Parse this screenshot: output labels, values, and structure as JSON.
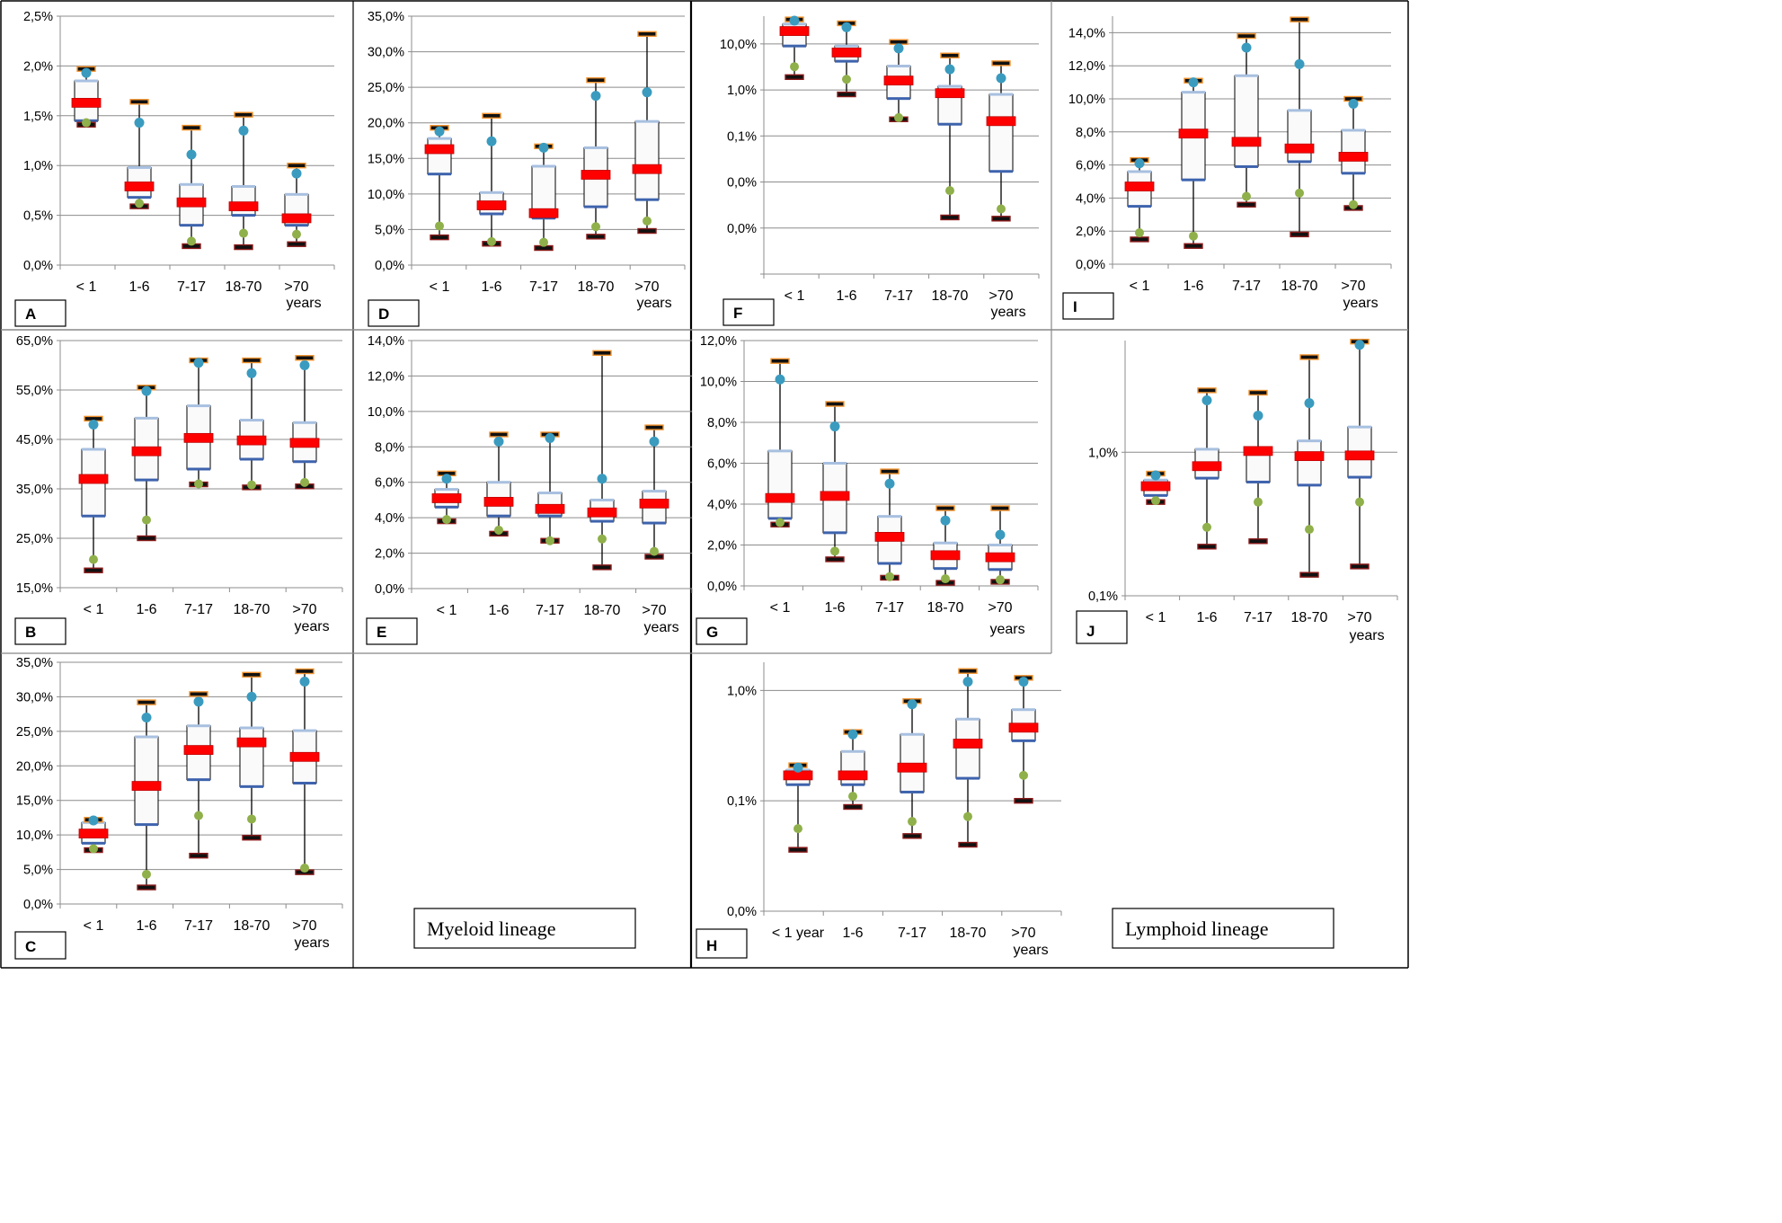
{
  "lineage_labels": {
    "myeloid": "Myeloid lineage",
    "lymphoid": "Lymphoid lineage"
  },
  "chart_data": [
    {
      "panel": "A",
      "type": "box",
      "scale": "linear",
      "ylim": [
        0,
        2.5
      ],
      "yticks": [
        0,
        0.5,
        1.0,
        1.5,
        2.0,
        2.5
      ],
      "ytick_labels": [
        "0,0%",
        "0,5%",
        "1,0%",
        "1,5%",
        "2,0%",
        "2,5%"
      ],
      "categories": [
        "< 1",
        "1-6",
        "7-17",
        "18-70",
        ">70"
      ],
      "xunit": "years",
      "grid": true,
      "boxes": [
        {
          "max": 1.97,
          "p95": 1.93,
          "q3": 1.85,
          "median": 1.63,
          "q1": 1.45,
          "p5": 1.43,
          "min": 1.41
        },
        {
          "max": 1.64,
          "p95": 1.43,
          "q3": 0.98,
          "median": 0.79,
          "q1": 0.68,
          "p5": 0.62,
          "min": 0.59
        },
        {
          "max": 1.38,
          "p95": 1.11,
          "q3": 0.81,
          "median": 0.63,
          "q1": 0.4,
          "p5": 0.24,
          "min": 0.19
        },
        {
          "max": 1.51,
          "p95": 1.35,
          "q3": 0.79,
          "median": 0.59,
          "q1": 0.5,
          "p5": 0.32,
          "min": 0.18
        },
        {
          "max": 1.0,
          "p95": 0.92,
          "q3": 0.71,
          "median": 0.47,
          "q1": 0.4,
          "p5": 0.31,
          "min": 0.21
        }
      ]
    },
    {
      "panel": "B",
      "type": "box",
      "scale": "linear",
      "ylim": [
        15,
        65
      ],
      "yticks": [
        15,
        25,
        35,
        45,
        55,
        65
      ],
      "ytick_labels": [
        "15,0%",
        "25,0%",
        "35,0%",
        "45,0%",
        "55,0%",
        "65,0%"
      ],
      "categories": [
        "< 1",
        "1-6",
        "7-17",
        "18-70",
        ">70"
      ],
      "xunit": "years",
      "grid": true,
      "boxes": [
        {
          "max": 49.2,
          "p95": 48.0,
          "q3": 43.0,
          "median": 37.0,
          "q1": 29.5,
          "p5": 20.7,
          "min": 18.5
        },
        {
          "max": 55.5,
          "p95": 54.8,
          "q3": 49.3,
          "median": 42.6,
          "q1": 36.8,
          "p5": 28.7,
          "min": 25.0
        },
        {
          "max": 61.0,
          "p95": 60.5,
          "q3": 51.8,
          "median": 45.3,
          "q1": 39.0,
          "p5": 36.0,
          "min": 35.9
        },
        {
          "max": 61.0,
          "p95": 58.4,
          "q3": 48.9,
          "median": 44.8,
          "q1": 41.0,
          "p5": 35.8,
          "min": 35.3
        },
        {
          "max": 61.5,
          "p95": 60.0,
          "q3": 48.4,
          "median": 44.3,
          "q1": 40.5,
          "p5": 36.3,
          "min": 35.5
        }
      ]
    },
    {
      "panel": "C",
      "type": "box",
      "scale": "linear",
      "ylim": [
        0,
        35
      ],
      "yticks": [
        0,
        5,
        10,
        15,
        20,
        25,
        30,
        35
      ],
      "ytick_labels": [
        "0,0%",
        "5,0%",
        "10,0%",
        "15,0%",
        "20,0%",
        "25,0%",
        "30,0%",
        "35,0%"
      ],
      "categories": [
        "< 1",
        "1-6",
        "7-17",
        "18-70",
        ">70"
      ],
      "xunit": "years",
      "grid": true,
      "boxes": [
        {
          "max": 12.2,
          "p95": 12.1,
          "q3": 11.8,
          "median": 10.2,
          "q1": 8.8,
          "p5": 8.0,
          "min": 7.8
        },
        {
          "max": 29.2,
          "p95": 27.0,
          "q3": 24.2,
          "median": 17.1,
          "q1": 11.5,
          "p5": 4.3,
          "min": 2.4
        },
        {
          "max": 30.4,
          "p95": 29.3,
          "q3": 25.8,
          "median": 22.3,
          "q1": 18.0,
          "p5": 12.8,
          "min": 7.0
        },
        {
          "max": 33.2,
          "p95": 30.0,
          "q3": 25.5,
          "median": 23.4,
          "q1": 17.0,
          "p5": 12.3,
          "min": 9.6
        },
        {
          "max": 33.7,
          "p95": 32.2,
          "q3": 25.1,
          "median": 21.3,
          "q1": 17.5,
          "p5": 5.2,
          "min": 4.6
        }
      ]
    },
    {
      "panel": "D",
      "type": "box",
      "scale": "linear",
      "ylim": [
        0,
        35
      ],
      "yticks": [
        0,
        5,
        10,
        15,
        20,
        25,
        30,
        35
      ],
      "ytick_labels": [
        "0,0%",
        "5,0%",
        "10,0%",
        "15,0%",
        "20,0%",
        "25,0%",
        "30,0%",
        "35,0%"
      ],
      "categories": [
        "< 1",
        "1-6",
        "7-17",
        "18-70",
        ">70"
      ],
      "xunit": "years",
      "grid": true,
      "boxes": [
        {
          "max": 19.3,
          "p95": 18.8,
          "q3": 17.8,
          "median": 16.3,
          "q1": 12.8,
          "p5": 5.5,
          "min": 3.9
        },
        {
          "max": 21.0,
          "p95": 17.4,
          "q3": 10.2,
          "median": 8.4,
          "q1": 7.2,
          "p5": 3.3,
          "min": 3.0
        },
        {
          "max": 16.7,
          "p95": 16.5,
          "q3": 13.9,
          "median": 7.3,
          "q1": 6.6,
          "p5": 3.2,
          "min": 2.4
        },
        {
          "max": 26.0,
          "p95": 23.8,
          "q3": 16.5,
          "median": 12.7,
          "q1": 8.2,
          "p5": 5.4,
          "min": 4.0
        },
        {
          "max": 32.5,
          "p95": 24.3,
          "q3": 20.2,
          "median": 13.5,
          "q1": 9.2,
          "p5": 6.2,
          "min": 4.8
        }
      ]
    },
    {
      "panel": "E",
      "type": "box",
      "scale": "linear",
      "ylim": [
        0,
        14
      ],
      "yticks": [
        0,
        2,
        4,
        6,
        8,
        10,
        12,
        14
      ],
      "ytick_labels": [
        "0,0%",
        "2,0%",
        "4,0%",
        "6,0%",
        "8,0%",
        "10,0%",
        "12,0%",
        "14,0%"
      ],
      "categories": [
        "< 1",
        "1-6",
        "7-17",
        "18-70",
        ">70"
      ],
      "xunit": "years",
      "grid": true,
      "boxes": [
        {
          "max": 6.5,
          "p95": 6.2,
          "q3": 5.6,
          "median": 5.1,
          "q1": 4.6,
          "p5": 3.9,
          "min": 3.8
        },
        {
          "max": 8.7,
          "p95": 8.3,
          "q3": 6.0,
          "median": 4.9,
          "q1": 4.1,
          "p5": 3.3,
          "min": 3.1
        },
        {
          "max": 8.7,
          "p95": 8.5,
          "q3": 5.4,
          "median": 4.5,
          "q1": 4.1,
          "p5": 2.7,
          "min": 2.7
        },
        {
          "max": 13.3,
          "p95": 6.2,
          "q3": 5.0,
          "median": 4.3,
          "q1": 3.8,
          "p5": 2.8,
          "min": 1.2
        },
        {
          "max": 9.1,
          "p95": 8.3,
          "q3": 5.5,
          "median": 4.8,
          "q1": 3.7,
          "p5": 2.1,
          "min": 1.8
        }
      ]
    },
    {
      "panel": "F",
      "type": "box",
      "scale": "log",
      "ylim": [
        0.0001,
        40
      ],
      "yticks": [
        0.0001,
        0.001,
        0.01,
        0.1,
        1,
        10
      ],
      "ytick_labels": [
        "0,0%",
        "0,0%",
        "0,1%",
        "1,0%",
        "10,0%"
      ],
      "ytick_values": [
        0.001,
        0.01,
        0.1,
        1,
        10
      ],
      "categories": [
        "< 1",
        "1-6",
        "7-17",
        "18-70",
        ">70"
      ],
      "xunit": "years",
      "grid": true,
      "boxes": [
        {
          "max": 34,
          "p95": 32,
          "q3": 27,
          "median": 19,
          "q1": 9,
          "p5": 3.2,
          "min": 1.9
        },
        {
          "max": 28,
          "p95": 23,
          "q3": 9,
          "median": 6.5,
          "q1": 4.2,
          "p5": 1.7,
          "min": 0.8
        },
        {
          "max": 11,
          "p95": 8,
          "q3": 3.3,
          "median": 1.6,
          "q1": 0.65,
          "p5": 0.25,
          "min": 0.23
        },
        {
          "max": 5.6,
          "p95": 2.8,
          "q3": 1.2,
          "median": 0.85,
          "q1": 0.18,
          "p5": 0.0065,
          "min": 0.0017
        },
        {
          "max": 3.8,
          "p95": 1.8,
          "q3": 0.8,
          "median": 0.21,
          "q1": 0.017,
          "p5": 0.0026,
          "min": 0.0016
        }
      ]
    },
    {
      "panel": "G",
      "type": "box",
      "scale": "linear",
      "ylim": [
        0,
        12
      ],
      "yticks": [
        0,
        2,
        4,
        6,
        8,
        10,
        12
      ],
      "ytick_labels": [
        "0,0%",
        "2,0%",
        "4,0%",
        "6,0%",
        "8,0%",
        "10,0%",
        "12,0%"
      ],
      "categories": [
        "< 1",
        "1-6",
        "7-17",
        "18-70",
        ">70"
      ],
      "xunit": "years",
      "grid": true,
      "boxes": [
        {
          "max": 11.0,
          "p95": 10.1,
          "q3": 6.6,
          "median": 4.3,
          "q1": 3.3,
          "p5": 3.1,
          "min": 3.0
        },
        {
          "max": 8.9,
          "p95": 7.8,
          "q3": 6.0,
          "median": 4.4,
          "q1": 2.6,
          "p5": 1.7,
          "min": 1.3
        },
        {
          "max": 5.6,
          "p95": 5.0,
          "q3": 3.4,
          "median": 2.4,
          "q1": 1.1,
          "p5": 0.45,
          "min": 0.4
        },
        {
          "max": 3.8,
          "p95": 3.2,
          "q3": 2.1,
          "median": 1.5,
          "q1": 0.85,
          "p5": 0.35,
          "min": 0.15
        },
        {
          "max": 3.8,
          "p95": 2.5,
          "q3": 2.0,
          "median": 1.4,
          "q1": 0.8,
          "p5": 0.3,
          "min": 0.2
        }
      ]
    },
    {
      "panel": "H",
      "type": "box",
      "scale": "log",
      "ylim": [
        0.01,
        1.8
      ],
      "yticks": [
        0.01,
        0.1,
        1
      ],
      "ytick_labels": [
        "0,0%",
        "0,1%",
        "1,0%"
      ],
      "ytick_values": [
        0.01,
        0.1,
        1
      ],
      "categories": [
        "< 1 year",
        "1-6",
        "7-17",
        "18-70",
        ">70"
      ],
      "xunit": "years",
      "grid": true,
      "boxes": [
        {
          "max": 0.21,
          "p95": 0.2,
          "q3": 0.19,
          "median": 0.17,
          "q1": 0.14,
          "p5": 0.056,
          "min": 0.036
        },
        {
          "max": 0.42,
          "p95": 0.4,
          "q3": 0.28,
          "median": 0.17,
          "q1": 0.14,
          "p5": 0.11,
          "min": 0.088
        },
        {
          "max": 0.8,
          "p95": 0.75,
          "q3": 0.4,
          "median": 0.2,
          "q1": 0.12,
          "p5": 0.065,
          "min": 0.048
        },
        {
          "max": 1.5,
          "p95": 1.2,
          "q3": 0.55,
          "median": 0.33,
          "q1": 0.16,
          "p5": 0.072,
          "min": 0.04
        },
        {
          "max": 1.3,
          "p95": 1.2,
          "q3": 0.67,
          "median": 0.46,
          "q1": 0.35,
          "p5": 0.17,
          "min": 0.1
        }
      ]
    },
    {
      "panel": "I",
      "type": "box",
      "scale": "linear",
      "ylim": [
        0,
        15
      ],
      "yticks": [
        0,
        2,
        4,
        6,
        8,
        10,
        12,
        14
      ],
      "ytick_labels": [
        "0,0%",
        "2,0%",
        "4,0%",
        "6,0%",
        "8,0%",
        "10,0%",
        "12,0%",
        "14,0%"
      ],
      "categories": [
        "< 1",
        "1-6",
        "7-17",
        "18-70",
        ">70"
      ],
      "xunit": "years",
      "grid": true,
      "boxes": [
        {
          "max": 6.3,
          "p95": 6.1,
          "q3": 5.6,
          "median": 4.7,
          "q1": 3.5,
          "p5": 1.9,
          "min": 1.5
        },
        {
          "max": 11.1,
          "p95": 11.0,
          "q3": 10.4,
          "median": 7.9,
          "q1": 5.1,
          "p5": 1.7,
          "min": 1.1
        },
        {
          "max": 13.8,
          "p95": 13.1,
          "q3": 11.4,
          "median": 7.4,
          "q1": 5.9,
          "p5": 4.1,
          "min": 3.6
        },
        {
          "max": 14.8,
          "p95": 12.1,
          "q3": 9.3,
          "median": 7.0,
          "q1": 6.2,
          "p5": 4.3,
          "min": 1.8
        },
        {
          "max": 10.0,
          "p95": 9.7,
          "q3": 8.1,
          "median": 6.5,
          "q1": 5.5,
          "p5": 3.6,
          "min": 3.4
        }
      ]
    },
    {
      "panel": "J",
      "type": "box",
      "scale": "log",
      "ylim": [
        0.1,
        6
      ],
      "yticks": [
        0.1,
        1
      ],
      "ytick_labels": [
        "0,1%",
        "1,0%"
      ],
      "ytick_values": [
        0.1,
        1
      ],
      "categories": [
        "< 1",
        "1-6",
        "7-17",
        "18-70",
        ">70"
      ],
      "xunit": "years",
      "grid": true,
      "boxes": [
        {
          "max": 0.71,
          "p95": 0.69,
          "q3": 0.64,
          "median": 0.58,
          "q1": 0.5,
          "p5": 0.46,
          "min": 0.45
        },
        {
          "max": 2.7,
          "p95": 2.3,
          "q3": 1.05,
          "median": 0.8,
          "q1": 0.66,
          "p5": 0.3,
          "min": 0.22
        },
        {
          "max": 2.6,
          "p95": 1.8,
          "q3": 1.05,
          "median": 1.02,
          "q1": 0.62,
          "p5": 0.45,
          "min": 0.24
        },
        {
          "max": 4.6,
          "p95": 2.2,
          "q3": 1.2,
          "median": 0.94,
          "q1": 0.59,
          "p5": 0.29,
          "min": 0.14
        },
        {
          "max": 5.9,
          "p95": 5.6,
          "q3": 1.5,
          "median": 0.95,
          "q1": 0.67,
          "p5": 0.45,
          "min": 0.16
        }
      ]
    }
  ]
}
